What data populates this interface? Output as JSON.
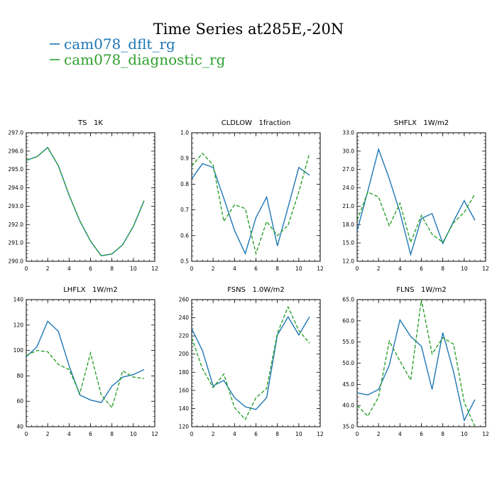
{
  "figure": {
    "title": "Time Series at285E,-20N",
    "legend": [
      {
        "name": "cam078_dflt_rg",
        "color": "#1f77b4",
        "style": "solid"
      },
      {
        "name": "cam078_diagnostic_rg",
        "color": "#2ca02c",
        "style": "dashed"
      }
    ]
  },
  "chart_data": [
    {
      "type": "line",
      "title": "TS   1K",
      "x": [
        0,
        1,
        2,
        3,
        4,
        5,
        6,
        7,
        8,
        9,
        10,
        11
      ],
      "xlim": [
        0,
        12
      ],
      "xticks": [
        0,
        2,
        4,
        6,
        8,
        10,
        12
      ],
      "ylim": [
        290.0,
        297.0
      ],
      "yticks": [
        "290.0",
        "291.0",
        "292.0",
        "293.0",
        "294.0",
        "295.0",
        "296.0",
        "297.0"
      ],
      "series": [
        {
          "name": "cam078_dflt_rg",
          "values": [
            295.5,
            295.7,
            296.2,
            295.2,
            293.6,
            292.2,
            291.1,
            290.3,
            290.4,
            290.9,
            291.9,
            293.3
          ]
        },
        {
          "name": "cam078_diagnostic_rg",
          "values": [
            295.5,
            295.7,
            296.2,
            295.2,
            293.6,
            292.2,
            291.1,
            290.3,
            290.4,
            290.9,
            291.9,
            293.3
          ]
        }
      ]
    },
    {
      "type": "line",
      "title": "CLDLOW   1fraction",
      "x": [
        0,
        1,
        2,
        3,
        4,
        5,
        6,
        7,
        8,
        9,
        10,
        11
      ],
      "xlim": [
        0,
        12
      ],
      "xticks": [
        0,
        2,
        4,
        6,
        8,
        10,
        12
      ],
      "ylim": [
        0.5,
        1.0
      ],
      "yticks": [
        "0.5",
        "0.6",
        "0.7",
        "0.8",
        "0.9",
        "1.0"
      ],
      "series": [
        {
          "name": "cam078_dflt_rg",
          "values": [
            0.82,
            0.88,
            0.865,
            0.745,
            0.62,
            0.53,
            0.67,
            0.75,
            0.56,
            0.71,
            0.865,
            0.835
          ]
        },
        {
          "name": "cam078_diagnostic_rg",
          "values": [
            0.87,
            0.92,
            0.875,
            0.655,
            0.72,
            0.705,
            0.53,
            0.655,
            0.6,
            0.64,
            0.77,
            0.92
          ]
        }
      ]
    },
    {
      "type": "line",
      "title": "SHFLX   1W/m2",
      "x": [
        0,
        1,
        2,
        3,
        4,
        5,
        6,
        7,
        8,
        9,
        10,
        11
      ],
      "xlim": [
        0,
        12
      ],
      "xticks": [
        0,
        2,
        4,
        6,
        8,
        10,
        12
      ],
      "ylim": [
        12.0,
        33.0
      ],
      "yticks": [
        "12.0",
        "15.0",
        "18.0",
        "21.0",
        "24.0",
        "27.0",
        "30.0",
        "33.0"
      ],
      "series": [
        {
          "name": "cam078_dflt_rg",
          "values": [
            17.0,
            23.5,
            30.3,
            25.5,
            20.0,
            13.1,
            19.0,
            19.8,
            14.9,
            18.5,
            21.9,
            18.7
          ]
        },
        {
          "name": "cam078_diagnostic_rg",
          "values": [
            18.7,
            23.3,
            22.5,
            17.8,
            21.5,
            15.1,
            19.5,
            16.4,
            15.1,
            18.3,
            20.0,
            23.0
          ]
        }
      ]
    },
    {
      "type": "line",
      "title": "LHFLX   1W/m2",
      "x": [
        0,
        1,
        2,
        3,
        4,
        5,
        6,
        7,
        8,
        9,
        10,
        11
      ],
      "xlim": [
        0,
        12
      ],
      "xticks": [
        0,
        2,
        4,
        6,
        8,
        10,
        12
      ],
      "ylim": [
        40,
        140
      ],
      "yticks": [
        "40",
        "60",
        "80",
        "100",
        "120",
        "140"
      ],
      "series": [
        {
          "name": "cam078_dflt_rg",
          "values": [
            95,
            103,
            123,
            115,
            88,
            65,
            61,
            59,
            72,
            79,
            81,
            85
          ]
        },
        {
          "name": "cam078_diagnostic_rg",
          "values": [
            96,
            100,
            99,
            89,
            85,
            66,
            98,
            65,
            55,
            84,
            79,
            78
          ]
        }
      ]
    },
    {
      "type": "line",
      "title": "FSNS   1.0W/m2",
      "x": [
        0,
        1,
        2,
        3,
        4,
        5,
        6,
        7,
        8,
        9,
        10,
        11
      ],
      "xlim": [
        0,
        12
      ],
      "xticks": [
        0,
        2,
        4,
        6,
        8,
        10,
        12
      ],
      "ylim": [
        120,
        260
      ],
      "yticks": [
        "120",
        "140",
        "160",
        "180",
        "200",
        "220",
        "240",
        "260"
      ],
      "series": [
        {
          "name": "cam078_dflt_rg",
          "values": [
            228,
            204,
            165,
            171,
            152,
            142,
            139,
            152,
            221,
            241,
            221,
            241
          ]
        },
        {
          "name": "cam078_diagnostic_rg",
          "values": [
            218,
            184,
            163,
            178,
            141,
            128,
            152,
            162,
            223,
            252,
            226,
            212
          ]
        }
      ]
    },
    {
      "type": "line",
      "title": "FLNS   1W/m2",
      "x": [
        0,
        1,
        2,
        3,
        4,
        5,
        6,
        7,
        8,
        9,
        10,
        11
      ],
      "xlim": [
        0,
        12
      ],
      "xticks": [
        0,
        2,
        4,
        6,
        8,
        10,
        12
      ],
      "ylim": [
        35.0,
        65.0
      ],
      "yticks": [
        "35.0",
        "40.0",
        "45.0",
        "50.0",
        "55.0",
        "60.0",
        "65.0"
      ],
      "series": [
        {
          "name": "cam078_dflt_rg",
          "values": [
            43.0,
            42.5,
            43.8,
            49.5,
            60.2,
            56.3,
            54.0,
            43.8,
            57.2,
            48.0,
            36.5,
            41.4
          ]
        },
        {
          "name": "cam078_diagnostic_rg",
          "values": [
            40.0,
            37.5,
            42.0,
            55.2,
            50.5,
            46.0,
            65.0,
            52.2,
            56.0,
            54.5,
            40.8,
            35.0
          ]
        }
      ]
    }
  ]
}
